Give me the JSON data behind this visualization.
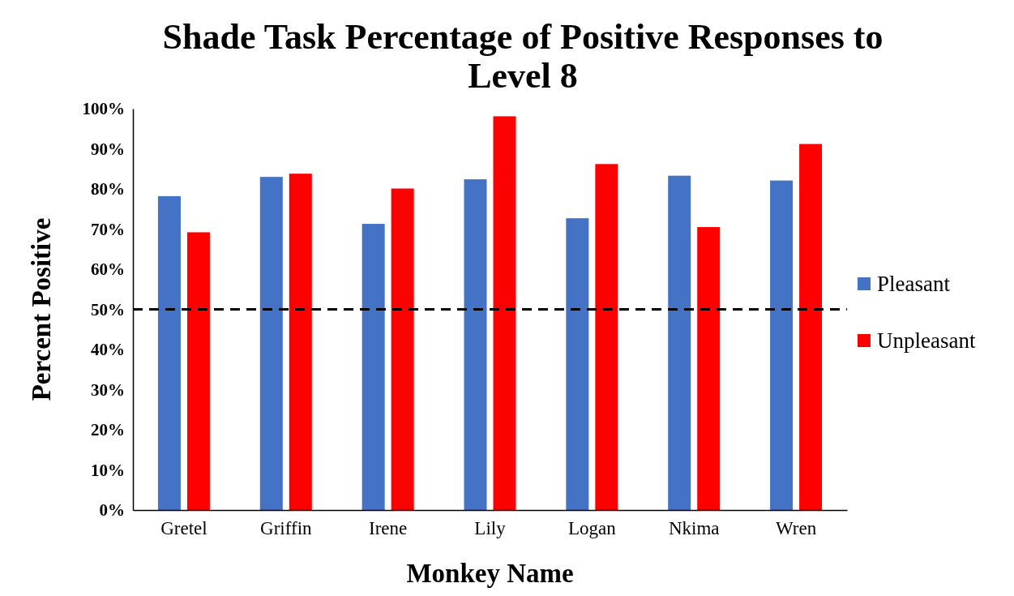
{
  "chart_data": {
    "type": "bar",
    "title": "Shade Task Percentage of Positive Responses to Level 8",
    "xlabel": "Monkey Name",
    "ylabel": "Percent Positive",
    "categories": [
      "Gretel",
      "Griffin",
      "Irene",
      "Lily",
      "Logan",
      "Nkima",
      "Wren"
    ],
    "series": [
      {
        "name": "Pleasant",
        "color": "#4472c4",
        "values": [
          78.2,
          83,
          71.3,
          82.4,
          72.7,
          83.3,
          82.1
        ]
      },
      {
        "name": "Unpleasant",
        "color": "#ff0000",
        "values": [
          69.2,
          83.8,
          80.1,
          98.1,
          86.2,
          70.5,
          91.2
        ]
      }
    ],
    "ylim": [
      0,
      100
    ],
    "yticks": [
      {
        "value": 0,
        "label": "0%"
      },
      {
        "value": 10,
        "label": "10%"
      },
      {
        "value": 20,
        "label": "20%"
      },
      {
        "value": 30,
        "label": "30%"
      },
      {
        "value": 40,
        "label": "40%"
      },
      {
        "value": 50,
        "label": "50%"
      },
      {
        "value": 60,
        "label": "60%"
      },
      {
        "value": 70,
        "label": "70%"
      },
      {
        "value": 80,
        "label": "80%"
      },
      {
        "value": 90,
        "label": "90%"
      },
      {
        "value": 100,
        "label": "100%"
      }
    ],
    "ref_lines": [
      {
        "axis": "y",
        "value": 50,
        "color": "#000000",
        "line_style": "dashed"
      }
    ],
    "grid": false,
    "legend": "right"
  }
}
